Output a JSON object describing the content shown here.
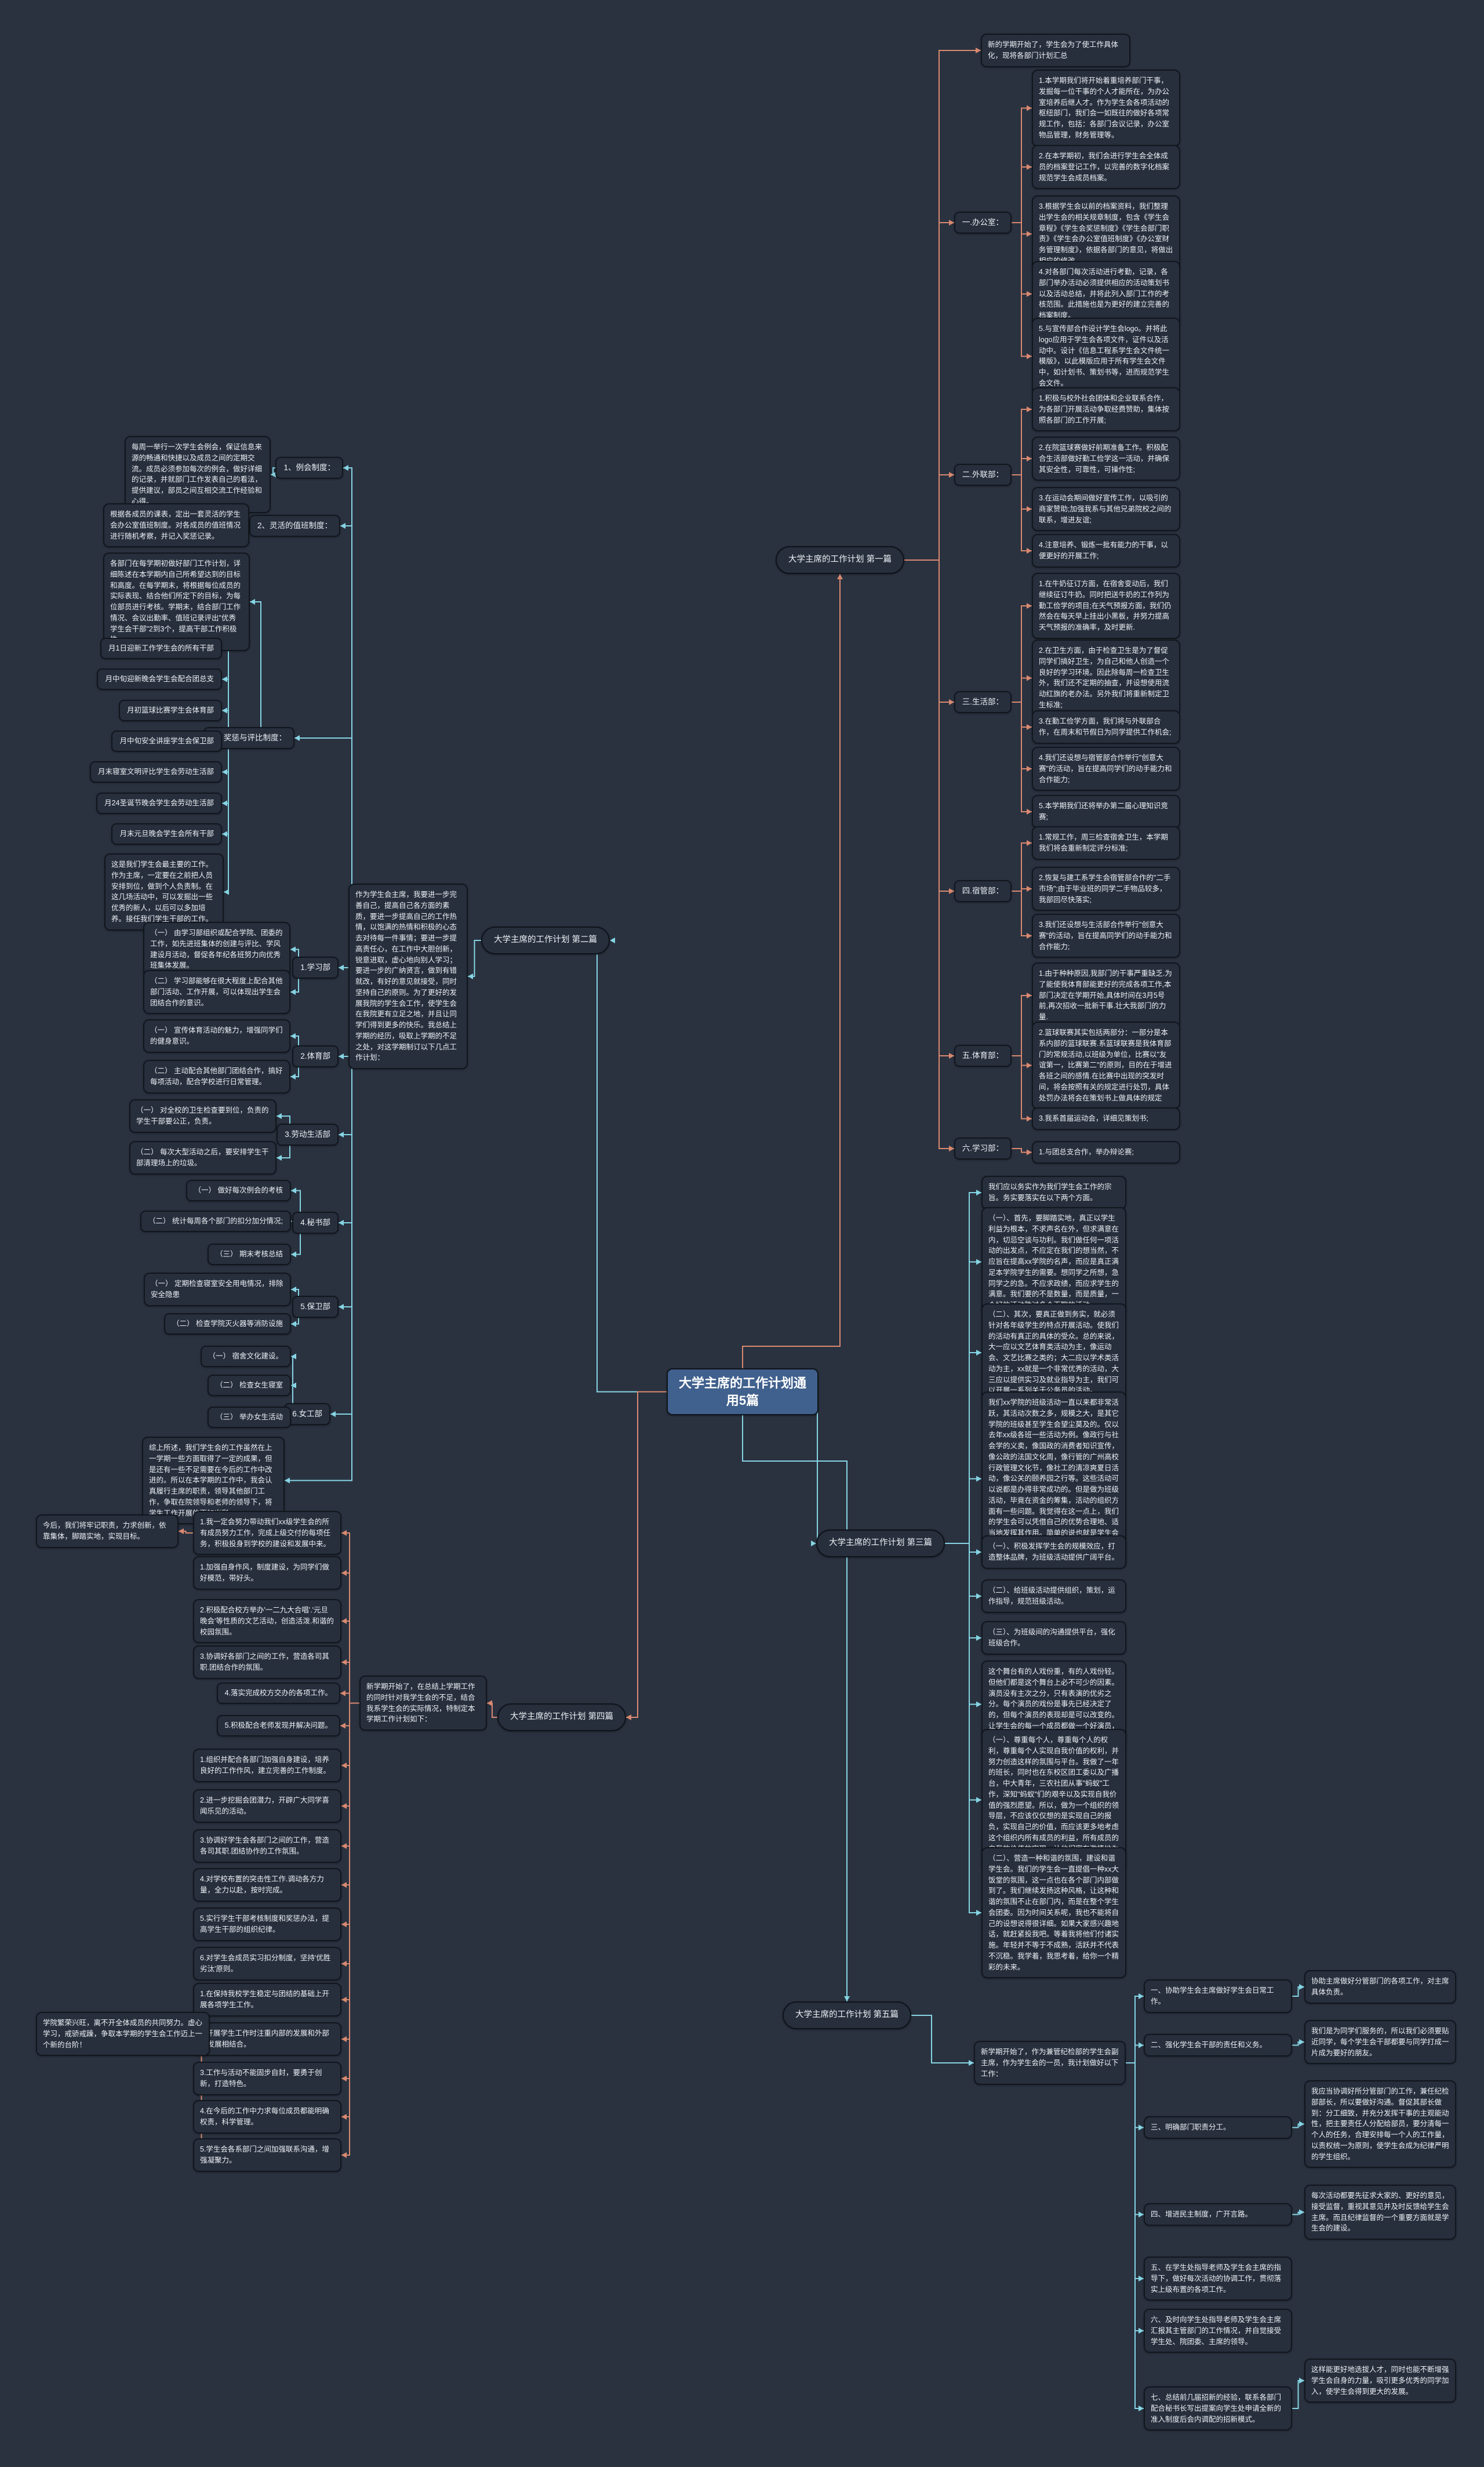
{
  "title": "大学主席的工作计划通用5篇",
  "colors": {
    "background": "#2a3240",
    "center_node": "#40608d",
    "warm_edge": "#d98970",
    "cool_edge": "#86d5e4",
    "box_bg": "#272f3d"
  },
  "s1": {
    "node_label": "大学主席的工作计划 第一篇",
    "intro": "新的学期开始了，学生会为了使工作具体化，现将各部门计划汇总",
    "departments": [
      {
        "label": "一.办公室：",
        "items": [
          "1.本学期我们将开始着重培养部门干事，发掘每一位干事的个人才能所在，为办公室培养后继人才。作为学生会各项活动的枢纽部门，我们会一如既往的做好各项常规工作，包括：各部门会议记录，办公室物品管理，财务管理等。",
          "2.在本学期初，我们会进行学生会全体成员的档案登记工作，以完善的数字化档案规范学生会成员档案。",
          "3.根据学生会以前的档案资料，我们整理出学生会的相关规章制度，包含《学生会章程》《学生会奖惩制度》《学生会部门职责》《学生会办公室值班制度》《办公室财务管理制度》，依据各部门的意见，将做出相应的修改。",
          "4.对各部门每次活动进行考勤，记录，各部门举办活动必须提供相应的活动策划书以及活动总结，并将此列入部门工作的考核范围。此措施也是为更好的建立完善的档案制度。",
          "5.与宣传部合作设计学生会logo。并将此logo应用于学生会各项文件，证件以及活动中。设计《信息工程系学生会文件统一模版》，以此模版应用于所有学生会文件中，如计划书、策划书等，进而规范学生会文件。"
        ]
      },
      {
        "label": "二.外联部：",
        "items": [
          "1.积极与校外社会团体和企业联系合作，为各部门开展活动争取经费赞助，集体按照各部门的工作开展;",
          "2.在院篮球赛做好前期准备工作。积极配合生活部做好勤工俭学这一活动，并确保其安全性，可靠性，可操作性;",
          "3.在运动会期间做好宣传工作，以吸引的商家赞助;加强我系与其他兄弟院校之间的联系，增进友谊;",
          "4.注意培养、锻炼一批有能力的干事，以便更好的开展工作;"
        ]
      },
      {
        "label": "三.生活部：",
        "items": [
          "1.在牛奶征订方面，在宿舍变动后，我们继续征订牛奶。同时把送牛奶的工作列为勤工俭学的项目;在天气预报方面，我们仍然会在每天早上挂出小黑板，并努力提高天气预报的准确率，及时更新.",
          "2.在卫生方面，由于检查卫生是为了督促同学们搞好卫生，为自己和他人创造一个良好的学习环境。因此除每周一检查卫生外，我们还不定期的抽查，并设想使用流动红旗的老办法。另外我们将重新制定卫生标准;",
          "3.在勤工俭学方面，我们将与外联部合作，在周末和节假日为同学提供工作机会;",
          "4.我们还设想与宿管部合作举行\"创意大赛\"的活动，旨在提高同学们的动手能力和合作能力;",
          "5.本学期我们还将举办第二届心理知识竞赛;"
        ]
      },
      {
        "label": "四.宿管部：",
        "items": [
          "1.常规工作，周三检查宿舍卫生，本学期我们将会重新制定评分标准;",
          "2.恢复与建工系学生会宿管部合作的\"二手市场\";由于毕业班的同学二手物品较多，我部回尽快落实;",
          "3.我们还设想与生活部合作举行\"创意大赛\"的活动，旨在提高同学们的动手能力和合作能力;"
        ]
      },
      {
        "label": "五.体育部：",
        "items": [
          "1.由于种种原因,我部门的干事严重缺乏.为了能使我体育部能更好的完成各项工作,本部门决定在学期开始,具体时间在3月5号前,再次招收一批新干事.壮大我部门的力量.",
          "2.篮球联赛其实包括两部分：一部分是本系内部的篮球联赛.系篮球联赛是我体育部门的常规活动,以班级为单位，比赛以\"友谊第一，比赛第二\"的原则，目的在于增进各班之间的感情.在比赛中出现的突发时间，将会按照有关的规定进行处罚，具体处罚办法将会在策划书上做具体的规定",
          "3.我系首届运动会，详细见策划书;"
        ]
      },
      {
        "label": "六.学习部：",
        "items": [
          "1.与团总支合作，举办辩论赛;"
        ]
      }
    ]
  },
  "s2": {
    "node_label": "大学主席的工作计划 第二篇",
    "intro": "作为学生会主席，我要进一步完善自己，提高自己各方面的素质，要进一步提高自己的工作热情，以饱满的热情和积极的心态去对待每一件事情；要进一步提高责任心，在工作中大胆创新，锐意进取，虚心地向别人学习；要进一步的广纳贤言，做到有错就改，有好的意见就接受，同时坚持自己的原则。为了更好的发展我院的学生会工作，使学生会在我院更有立足之地，并且让同学们得到更多的快乐。我总结上学期的经历，吸取上学期的不足之处，对这学期制订以下几点工作计划：",
    "systems": [
      {
        "label": "1、例会制度：",
        "note": "每周一举行一次学生会例会，保证信息来源的畅通和快捷以及成员之间的定期交流。成员必须参加每次的例会，做好详细的记录，并就部门工作发表自己的看法，提供建议，部员之间互相交流工作经验和心得。"
      },
      {
        "label": "2、灵活的值班制度：",
        "note": "根据各成员的课表，定出一套灵活的学生会办公室值班制度。对各成员的值班情况进行随机考察，并记入奖惩记录。"
      },
      {
        "label": "3、奖惩与评比制度：",
        "plan_note": "各部门在每学期初做好部门工作计划，详细陈述在本学期内自己所希望达到的目标和高度。在每学期末，将根据每位成员的实际表现、结合他们所定下的目标，为每位部员进行考核。学期末，结合部门工作情况、会议出勤率、值班记录评出\"优秀学生会干部\"2到3个，提高干部工作积极性。",
        "months": [
          "月1日迎新工作学生会的所有干部",
          "月中旬迎新晚会学生会配合团总支",
          "月初篮球比赛学生会体育部",
          "月中旬安全讲座学生会保卫部",
          "月末寝室文明评比学生会劳动生活部",
          "月24圣诞节晚会学生会劳动生活部",
          "月末元旦晚会学生会所有干部"
        ],
        "events_note": "这是我们学生会最主要的工作。作为主席，一定要在之前把人员安排到位，做到个人负责制。在这几场活动中，可以发掘出一些优秀的新人，以后可以多加培养。接任我们学生干部的工作。"
      }
    ],
    "departments": [
      {
        "label": "1.学习部",
        "items": [
          "（一） 由学习部组织或配合学院、团委的工作，如先进班集体的创建与评比、学风建设月活动，督促各年纪各班努力向优秀班集体发展。",
          "（二） 学习部能够在很大程度上配合其他部门活动、工作开展，可以体现出学生会团结合作的意识。"
        ]
      },
      {
        "label": "2.体育部",
        "items": [
          "（一） 宣传体育活动的魅力，增强同学们的健身意识。",
          "（二） 主动配合其他部门团结合作，搞好每项活动，配合学校进行日常管理。"
        ]
      },
      {
        "label": "3.劳动生活部",
        "items": [
          "（一） 对全校的卫生检查要到位，负责的学生干部要公正，负责。",
          "（二） 每次大型活动之后，要安排学生干部清理场上的垃圾。"
        ]
      },
      {
        "label": "4.秘书部",
        "items": [
          "（一） 做好每次例会的考核",
          "（二） 统计每周各个部门的扣分加分情况;",
          "（三） 期末考核总结"
        ]
      },
      {
        "label": "5.保卫部",
        "items": [
          "（一） 定期检查寝室安全用电情况，排除安全隐患",
          "（二） 检查学院灭火器等消防设施"
        ]
      },
      {
        "label": "6.女工部",
        "items": [
          "（一） 宿舍文化建设。",
          "（二） 检查女生寝室",
          "（三） 举办女生活动"
        ]
      }
    ],
    "closing": "综上所述，我们学生会的工作虽然在上一学期一些方面取得了一定的成果，但是还有一些不足需要在今后的工作中改进的。所以在本学期的工作中，我会认真履行主席的职责，领导其他部门工作，争取在院领导和老师的领导下，将学生工作开展的更加出彩。"
  },
  "s3": {
    "node_label": "大学主席的工作计划 第三篇",
    "paragraphs": [
      "我们应以务实作为我们学生会工作的宗旨。务实要落实在以下两个方面。",
      "（一）、首先，要脚踏实地，真正以学生利益为根本，不求声名在外，但求满意在内，切忌空谈与功利。我们做任何一项活动的出发点，不应定在我们的想当然，不应旨在提高xx学院的名声，而应是真正满足本学院学生的需要。想同学之所想，急同学之的急。不应求政绩，而应求学生的满意。我们要的不是数量，而是质量，一个好的活动胜过多个无聊的活动。",
      "（二）、其次，要真正做到务实，就必须针对各年级学生的特点开展活动。使我们的活动有真正的具体的受众。总的来说，大一应以文艺体育类活动为主，像运动会、文艺比赛之类的；大二应以学术类活动为主，xx就是一个非常优秀的活动，大三应以提供实习及就业指导为主，我们可以开展一系列关于公务员的活动。",
      "我们xx学院的班级活动一直以来都非常活跃，其活动次数之多，规模之大，是其它学院的班级甚至学生会望尘莫及的。仅以去年xx级各班一些活动为例。像政行与社会学的义卖，像国政的消费者知识宣传，像公政的法国文化周，像行管的广州高校行政管理文化节，像社工的清凉爽夏日活动，像公关的颐养园之行等。这些活动可以说都是办得非常成功的。但是做为班级活动，毕竟在资金的筹集，活动的组织方面有一些问题。我觉得在这一点上，我们的学生会可以凭借自己的优势合理地、适当地发挥其作用。简单的说也就是学生会搭台，班级唱戏。这主要体现在以下三个方面。",
      "（一）、积极发挥学生会的规模效应，打造整体品牌，为班级活动提供广阔平台。",
      "（二）、给班级活动提供组织，策划，运作指导，规范班级活动。",
      "（三）、为班级间的沟通提供平台，强化班级合作。",
      "这个舞台有的人戏份重，有的人戏份轻。但他们都是这个舞台上必不可少的因素。演员没有主次之分，只有表演的优劣之分。每个演员的戏份是事先已经决定了的，但每个演员的表现却是可以改变的。让学生会的每一个成员都做一个好演员，是我们应该尽心达成的目标。",
      "（一）、尊重每个人，尊重每个人的权利，尊重每个人实现自我价值的权利，并努力创造这样的氛围与平台。我做了一年的班长，同时也在东校区团工委以及广播台，中大青年，三农社团从事\"蚂蚁\"工作，深知\"蚂蚁\"们的艰辛以及实现自我价值的强烈愿望。所以，做为一个组织的领导层，不应该仅仅想的是实现自己的报负，实现自己的价值，而应该更多地考虑这个组织内所有成员的利益，所有成员的自我的价值的实现。让他们富有激情地为学院做贡献。",
      "（二）、营造一种和谐的氛围，建设和谐学生会。我们的学生会一直提倡一种xx大饭堂的氛围，这一点也在各个部门内部做到了。我们继续发扬这种风格，让这种和谐的氛围不止在部门内，而是在整个学生会团委。因为时间关系呢，我也不能将自己的设想说得很详细。如果大家感兴趣地话，就赶紧投我吧。等着我将他们付诸实施。年轻并不等于不成熟，活跃并不代表不沉稳。我学着，我思考着，给你一个精彩的未来。"
    ]
  },
  "s4": {
    "node_label": "大学主席的工作计划 第四篇",
    "intro": "新学期开始了，在总结上学期工作的同时针对我学生会的不足，结合我系学生会的实际情况，特制定本学期工作计划如下：",
    "goal": "今后，我们将牢记职责，力求创新，依靠集体，脚踏实地，实现目标。",
    "lead": "1.我一定会努力带动我们xx级学生会的所有成员努力工作，完成上级交付的每项任务，积极投身到学校的建设和发展中来。",
    "group_a": [
      "1.加强自身作风，制度建设，为同学们做好模范，带好头。",
      "2.积极配合校方举办'一二九大合唱'.'元旦晚会'等性质的文艺活动，创造活泼.和谐的校园氛围。",
      "3.协调好各部门之间的工作，营造各司其职.团结合作的氛围。",
      "4.落实完成校方交办的各项工作。",
      "5.积极配合老师发现并解决问题。"
    ],
    "group_b": [
      "1.组织并配合各部门加强自身建设，培养良好的工作作风，建立完善的工作制度。",
      "2.进一步挖掘会团潜力，开辟广大同学喜闻乐见的活动。",
      "3.协调好学生会各部门之间的工作，营造各司其职.团结协作的工作氛围。",
      "4.对学校布置的突击性工作.调动各方力量，全力以赴，按时完成。",
      "5.实行学生干部考核制度和奖惩办法，提高学生干部的组织纪律。",
      "6.对学生会成员实习扣分制度，坚持'优胜劣汰'原则。"
    ],
    "group_c": [
      "1.在保持我校学生稳定与团结的基础上开展各项学生工作。",
      "2.开展学生工作时注重内部的发展和外部的发展相结合。",
      "3.工作与活动不能固步自封，要勇于创新，打造特色。",
      "4.在今后的工作中力求每位成员都能明确权责，科学管理。",
      "5.学生会各系部门之间加强联系沟通，增强凝聚力。"
    ],
    "closing": "学院繁荣兴旺，离不开全体成员的共同努力。虚心学习，戒骄戒躁，争取本学期的学生会工作迈上一个新的台阶！"
  },
  "s5": {
    "node_label": "大学主席的工作计划 第五篇",
    "intro": "新学期开始了，作为兼管纪检部的学生会副主席，作为学生会的一员，我计划做好以下工作：",
    "items": [
      {
        "label": "一、协助学生会主席做好学生会日常工作。",
        "note": "协助主席做好分管部门的各项工作，对主席具体负责。"
      },
      {
        "label": "二、强化学生会干部的责任和义务。",
        "note": "我们是为同学们服务的，所以我们必须要贴近同学，每个学生会干部都要与同学打成一片成为要好的朋友。"
      },
      {
        "label": "三、明确部门职责分工。",
        "note": "我应当协调好所分管部门的工作，兼任纪检部部长，所以要做好沟通。督促其部长做到：分工细致，并充分发挥干事的主观能动性，把主要责任人分配给部员，要分清每一个人的任务，合理安排每一个人的工作量，以责权统一为原则，使学生会成为纪律严明的学生组织。"
      },
      {
        "label": "四、增进民主制度，广开言路。",
        "note": "每次活动都要先征求大家的、更好的意见，接受监督，重视其意见并及时反馈给学生会主席。而且纪律监督的一个重要方面就是学生会的建设。"
      },
      {
        "label": "五、在学生处指导老师及学生会主席的指导下，做好每次活动的协调工作，贯彻落实上级布置的各项工作。",
        "note": ""
      },
      {
        "label": "六、及时向学生处指导老师及学生会主席汇报其主管部门的工作情况，并自觉接受学生处、院团委、主席的领导。",
        "note": ""
      },
      {
        "label": "七、总结前几届招新的经验，联系各部门配合秘书长写出提案向学生处申请全新的准入制度后会内调配的招新模式。",
        "note": "这样能更好地选拔人才，同时也能不断增强学生会自身的力量，吸引更多优秀的同学加入，使学生会得到更大的发展。"
      }
    ]
  }
}
